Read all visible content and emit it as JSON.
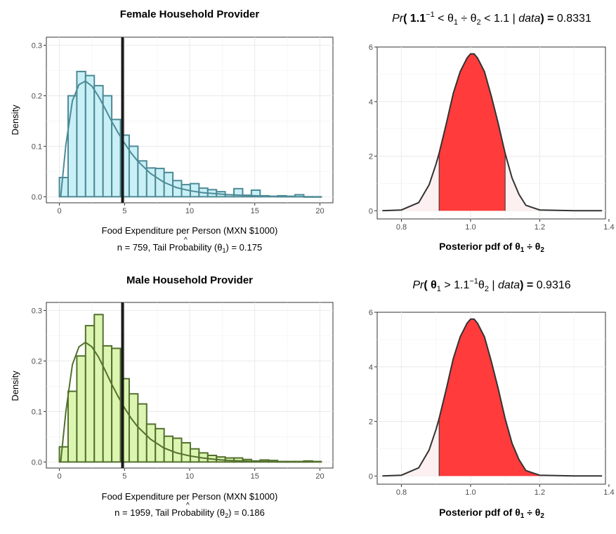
{
  "chart_data": [
    {
      "type": "bar",
      "id": "female-hist",
      "title": "Female Household Provider",
      "xlabel": "Food Expenditure per Person (MXN $1000)",
      "subtitle_prefix": "n = 759, Tail Probability (",
      "subtitle_theta": "θ",
      "subtitle_sub": "1",
      "subtitle_suffix": ") = 0.175",
      "ylabel": "Density",
      "xlim": [
        -1,
        21
      ],
      "ylim": [
        -0.012,
        0.316
      ],
      "xticks": [
        0,
        5,
        10,
        15,
        20
      ],
      "xtick_labels": [
        "0",
        "5",
        "10",
        "15",
        "20"
      ],
      "yticks": [
        0,
        0.1,
        0.2,
        0.3
      ],
      "ytick_labels": [
        "0.0",
        "0.1",
        "0.2",
        "0.3"
      ],
      "bin_width": 0.67,
      "bin_start": 0,
      "bars": [
        0.038,
        0.2,
        0.248,
        0.24,
        0.22,
        0.2,
        0.153,
        0.122,
        0.1,
        0.071,
        0.057,
        0.056,
        0.048,
        0.032,
        0.024,
        0.026,
        0.017,
        0.014,
        0.01,
        0.004,
        0.016,
        0.003,
        0.013,
        0.002,
        0.001,
        0.002,
        0.001,
        0.004,
        0.0,
        0.0
      ],
      "density_x": [
        0.1,
        0.5,
        1.0,
        1.5,
        2.0,
        2.5,
        3.0,
        3.5,
        4.0,
        4.5,
        5.0,
        5.5,
        6.0,
        7.0,
        8.0,
        9.0,
        10.0,
        11.0,
        12.0,
        13.0,
        14.0,
        15.0,
        16.0,
        17.0,
        19.2
      ],
      "density_y": [
        0.0,
        0.103,
        0.19,
        0.222,
        0.229,
        0.219,
        0.199,
        0.175,
        0.15,
        0.127,
        0.106,
        0.087,
        0.071,
        0.046,
        0.029,
        0.018,
        0.012,
        0.008,
        0.006,
        0.004,
        0.003,
        0.002,
        0.001,
        0.0,
        0.0
      ],
      "vline": 4.85,
      "fill": "#c8f0f6",
      "stroke": "#4e8a96"
    },
    {
      "type": "area",
      "id": "female-post",
      "title_parts": [
        "Pr",
        "( 1.1",
        "−1",
        " < θ",
        "1",
        " ÷ θ",
        "2",
        " < 1.1 | ",
        "data",
        ") = ",
        "0.8331"
      ],
      "xlabel_prefix": "Posterior pdf of θ",
      "xlabel_sub1": "1",
      "xlabel_mid": " ÷ θ",
      "xlabel_sub2": "2",
      "xlim": [
        0.73,
        1.39
      ],
      "ylim": [
        -0.3,
        6.0
      ],
      "xticks": [
        0.8,
        1.0,
        1.2,
        1.4
      ],
      "xtick_labels": [
        "0.8",
        "1.0",
        "1.2",
        "1.4"
      ],
      "yticks": [
        0,
        2,
        4,
        6
      ],
      "ytick_labels": [
        "0",
        "2",
        "4",
        "6"
      ],
      "shade_range": [
        0.909,
        1.1
      ],
      "density_x": [
        0.745,
        0.8,
        0.85,
        0.88,
        0.9,
        0.909,
        0.93,
        0.95,
        0.97,
        0.99,
        1.0,
        1.01,
        1.02,
        1.04,
        1.06,
        1.08,
        1.1,
        1.12,
        1.14,
        1.16,
        1.2,
        1.3,
        1.38
      ],
      "density_y": [
        0.0,
        0.03,
        0.3,
        0.95,
        1.7,
        2.1,
        3.2,
        4.3,
        5.1,
        5.6,
        5.75,
        5.75,
        5.6,
        5.1,
        4.2,
        3.2,
        2.1,
        1.2,
        0.6,
        0.2,
        0.03,
        0.0,
        0.0
      ],
      "fill": "#ff3b3b",
      "stroke": "#333333"
    },
    {
      "type": "bar",
      "id": "male-hist",
      "title": "Male Household Provider",
      "xlabel": "Food Expenditure per Person (MXN $1000)",
      "subtitle_prefix": "n = 1959, Tail Probability (",
      "subtitle_theta": "θ",
      "subtitle_sub": "2",
      "subtitle_suffix": ") = 0.186",
      "ylabel": "Density",
      "xlim": [
        -1,
        21
      ],
      "ylim": [
        -0.012,
        0.316
      ],
      "xticks": [
        0,
        5,
        10,
        15,
        20
      ],
      "xtick_labels": [
        "0",
        "5",
        "10",
        "15",
        "20"
      ],
      "yticks": [
        0,
        0.1,
        0.2,
        0.3
      ],
      "ytick_labels": [
        "0.0",
        "0.1",
        "0.2",
        "0.3"
      ],
      "bin_width": 0.67,
      "bin_start": 0,
      "bars": [
        0.03,
        0.14,
        0.21,
        0.27,
        0.292,
        0.23,
        0.225,
        0.165,
        0.135,
        0.115,
        0.075,
        0.066,
        0.051,
        0.047,
        0.038,
        0.026,
        0.018,
        0.013,
        0.01,
        0.008,
        0.008,
        0.005,
        0.002,
        0.004,
        0.003,
        0.001,
        0.001,
        0.001,
        0.002,
        0.001
      ],
      "density_x": [
        0.1,
        0.5,
        1.0,
        1.5,
        2.0,
        2.5,
        3.0,
        3.5,
        4.0,
        4.5,
        5.0,
        5.5,
        6.0,
        7.0,
        8.0,
        9.0,
        10.0,
        11.0,
        12.0,
        13.0,
        14.0,
        15.0,
        16.0,
        17.0,
        19.2
      ],
      "density_y": [
        0.0,
        0.1,
        0.193,
        0.228,
        0.237,
        0.228,
        0.208,
        0.182,
        0.155,
        0.13,
        0.107,
        0.087,
        0.07,
        0.045,
        0.028,
        0.018,
        0.012,
        0.008,
        0.005,
        0.003,
        0.002,
        0.001,
        0.001,
        0.0,
        0.0
      ],
      "vline": 4.85,
      "fill": "#dcf5b0",
      "stroke": "#52702e"
    },
    {
      "type": "area",
      "id": "male-post",
      "title_parts": [
        "Pr",
        "( θ",
        "1",
        " > 1.1",
        "−1",
        "θ",
        "2",
        " | ",
        "data",
        ") = ",
        "0.9316"
      ],
      "xlabel_prefix": "Posterior pdf of θ",
      "xlabel_sub1": "1",
      "xlabel_mid": " ÷ θ",
      "xlabel_sub2": "2",
      "xlim": [
        0.73,
        1.39
      ],
      "ylim": [
        -0.3,
        6.0
      ],
      "xticks": [
        0.8,
        1.0,
        1.2,
        1.4
      ],
      "xtick_labels": [
        "0.8",
        "1.0",
        "1.2",
        "1.4"
      ],
      "yticks": [
        0,
        2,
        4,
        6
      ],
      "ytick_labels": [
        "0",
        "2",
        "4",
        "6"
      ],
      "shade_range": [
        0.909,
        1.39
      ],
      "density_x": [
        0.745,
        0.8,
        0.85,
        0.88,
        0.9,
        0.909,
        0.93,
        0.95,
        0.97,
        0.99,
        1.0,
        1.01,
        1.02,
        1.04,
        1.06,
        1.08,
        1.1,
        1.12,
        1.14,
        1.16,
        1.2,
        1.3,
        1.38
      ],
      "density_y": [
        0.0,
        0.03,
        0.3,
        0.95,
        1.7,
        2.1,
        3.2,
        4.3,
        5.1,
        5.6,
        5.75,
        5.75,
        5.6,
        5.1,
        4.2,
        3.2,
        2.1,
        1.2,
        0.6,
        0.2,
        0.03,
        0.0,
        0.0
      ],
      "fill": "#ff3b3b",
      "stroke": "#333333"
    }
  ]
}
